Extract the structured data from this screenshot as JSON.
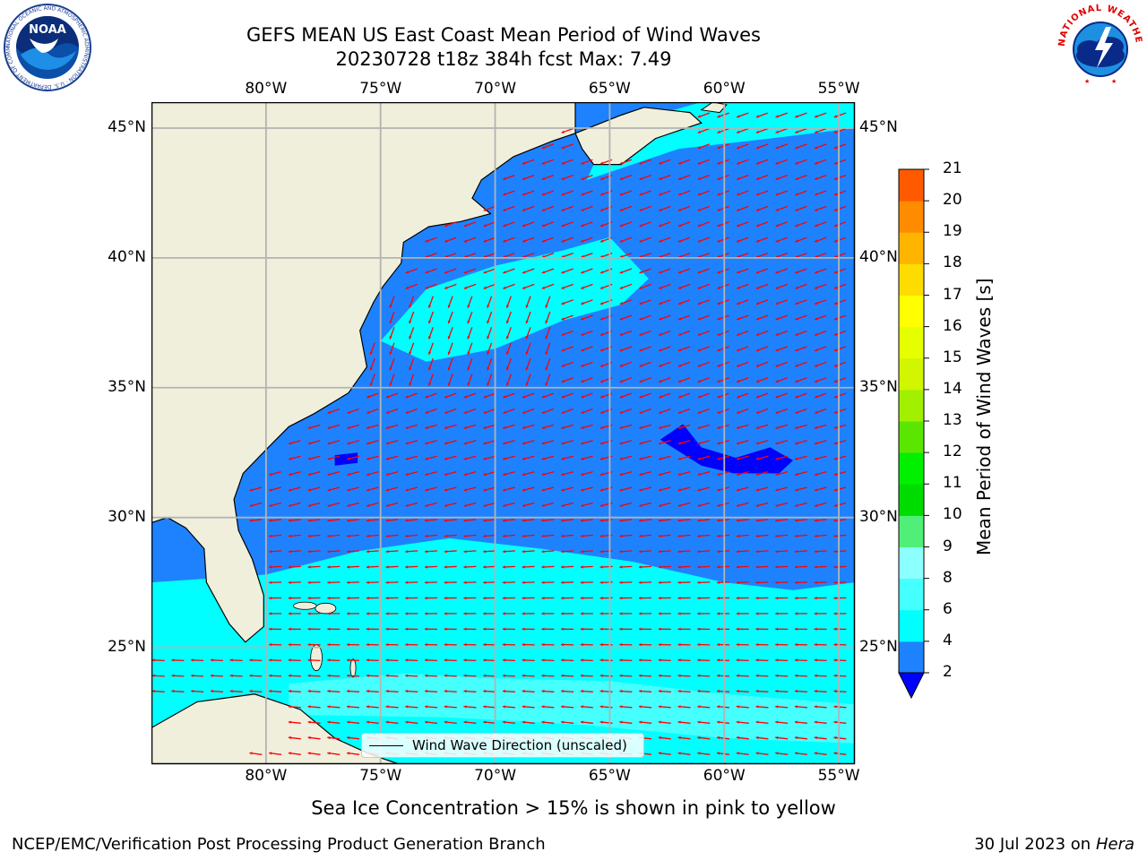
{
  "title": {
    "line1": "GEFS MEAN US East Coast Mean Period of Wind Waves",
    "line2": "20230728 t18z 384h fcst   Max: 7.49"
  },
  "logos": {
    "noaa": {
      "text": "NOAA",
      "ring_text": "NATIONAL OCEANIC AND ATMOSPHERIC ADMINISTRATION · U.S. DEPARTMENT OF COMMERCE"
    },
    "nws": {
      "ring_text": "NATIONAL WEATHER SERVICE"
    }
  },
  "map": {
    "lon_range": [
      -85,
      -54.3
    ],
    "lat_range": [
      20.5,
      46
    ],
    "lon_ticks": [
      {
        "value": -80,
        "label": "80°W"
      },
      {
        "value": -75,
        "label": "75°W"
      },
      {
        "value": -70,
        "label": "70°W"
      },
      {
        "value": -65,
        "label": "65°W"
      },
      {
        "value": -60,
        "label": "60°W"
      },
      {
        "value": -55,
        "label": "55°W"
      }
    ],
    "lat_ticks": [
      {
        "value": 45,
        "label": "45°N"
      },
      {
        "value": 40,
        "label": "40°N"
      },
      {
        "value": 35,
        "label": "35°N"
      },
      {
        "value": 30,
        "label": "30°N"
      },
      {
        "value": 25,
        "label": "25°N"
      }
    ],
    "colors": {
      "land": "#efefdc",
      "ocean_2_4": "#1e82ff",
      "ocean_4_6": "#00ffff",
      "ocean_6_8": "#46ffff",
      "ocean_below_2": "#0000ff",
      "arrows": "#ff0000",
      "grid": "#b3b3b3"
    },
    "legend_label": "Wind Wave Direction (unscaled)"
  },
  "colorbar": {
    "label": "Mean Period of Wind Waves [s]",
    "ticks": [
      "2",
      "4",
      "6",
      "8",
      "9",
      "10",
      "11",
      "12",
      "13",
      "14",
      "15",
      "16",
      "17",
      "18",
      "19",
      "20",
      "21"
    ],
    "colors": [
      "#1e82ff",
      "#00ffff",
      "#46ffff",
      "#8cffff",
      "#50f078",
      "#00dc00",
      "#00f000",
      "#5ae600",
      "#a0f000",
      "#d2f500",
      "#e6ff00",
      "#ffff00",
      "#ffdc00",
      "#ffb400",
      "#ff8c00",
      "#ff5a00",
      "#ff2800",
      "#ff0000"
    ],
    "extend_color": "#0000ff"
  },
  "footer": {
    "ice_note": "Sea Ice Concentration > 15% is shown in pink to yellow",
    "branch": "NCEP/EMC/Verification Post Processing Product Generation Branch",
    "date": "30 Jul 2023 on ",
    "machine": "Hera"
  }
}
